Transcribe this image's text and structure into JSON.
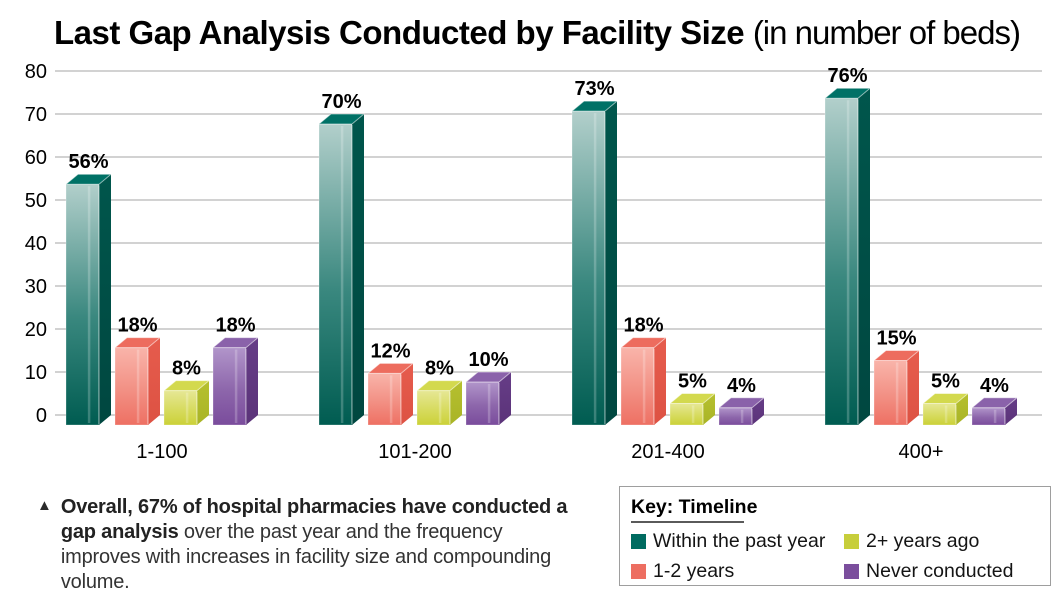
{
  "chart_data": {
    "type": "bar",
    "title": "Last Gap Analysis Conducted by Facility Size",
    "subtitle": "(in number of beds)",
    "categories": [
      "1-100",
      "101-200",
      "201-400",
      "400+"
    ],
    "series": [
      {
        "name": "Within the past year",
        "values": [
          56,
          70,
          73,
          76
        ],
        "colors": {
          "solid": "#006b60",
          "front_top": "#b2cfcb",
          "front_mid": "#3a887f",
          "front_bottom": "#005c51",
          "side_top": "#00564c",
          "side_bottom": "#004740",
          "top": "#007166"
        }
      },
      {
        "name": "1-2 years",
        "values": [
          18,
          12,
          18,
          15
        ],
        "colors": {
          "solid": "#ed6e61",
          "front_top": "#f9b4aa",
          "front_mid": "#f29084",
          "front_bottom": "#ee7063",
          "side_top": "#e65c4d",
          "side_bottom": "#dd5243",
          "top": "#ed6c5e"
        }
      },
      {
        "name": "2+ years ago",
        "values": [
          8,
          8,
          5,
          5
        ],
        "colors": {
          "solid": "#c7ce3b",
          "front_top": "#e6e795",
          "front_mid": "#d7db5f",
          "front_bottom": "#cbd138",
          "side_top": "#b6c02f",
          "side_bottom": "#a9b426",
          "top": "#d3d94e"
        }
      },
      {
        "name": "Never conducted",
        "values": [
          18,
          10,
          4,
          4
        ],
        "colors": {
          "solid": "#7b4e9d",
          "front_top": "#b195ca",
          "front_mid": "#8d66ab",
          "front_bottom": "#7a4c9c",
          "side_top": "#663d87",
          "side_bottom": "#5b3379",
          "top": "#8a62aa"
        }
      }
    ],
    "ylim": [
      0,
      80
    ],
    "yticks": [
      0,
      10,
      20,
      30,
      40,
      50,
      60,
      70,
      80
    ],
    "ytick_interval": 10,
    "grid": true,
    "gridline_color": "#c3c3c3",
    "value_label_suffix": "%",
    "legend_position": "bottom-right"
  },
  "legend": {
    "title": "Key: Timeline",
    "items": [
      {
        "label": "Within the past year",
        "color": "#006b60"
      },
      {
        "label": "2+ years ago",
        "color": "#c7ce3b"
      },
      {
        "label": "1-2 years",
        "color": "#ed6e61"
      },
      {
        "label": "Never conducted",
        "color": "#7b4e9d"
      }
    ]
  },
  "footnote": {
    "bullet": "▲",
    "bold": "Overall, 67% of hospital pharmacies have conducted a gap analysis",
    "regular": " over the past year and the frequency improves with increases in facility size and compounding volume."
  }
}
